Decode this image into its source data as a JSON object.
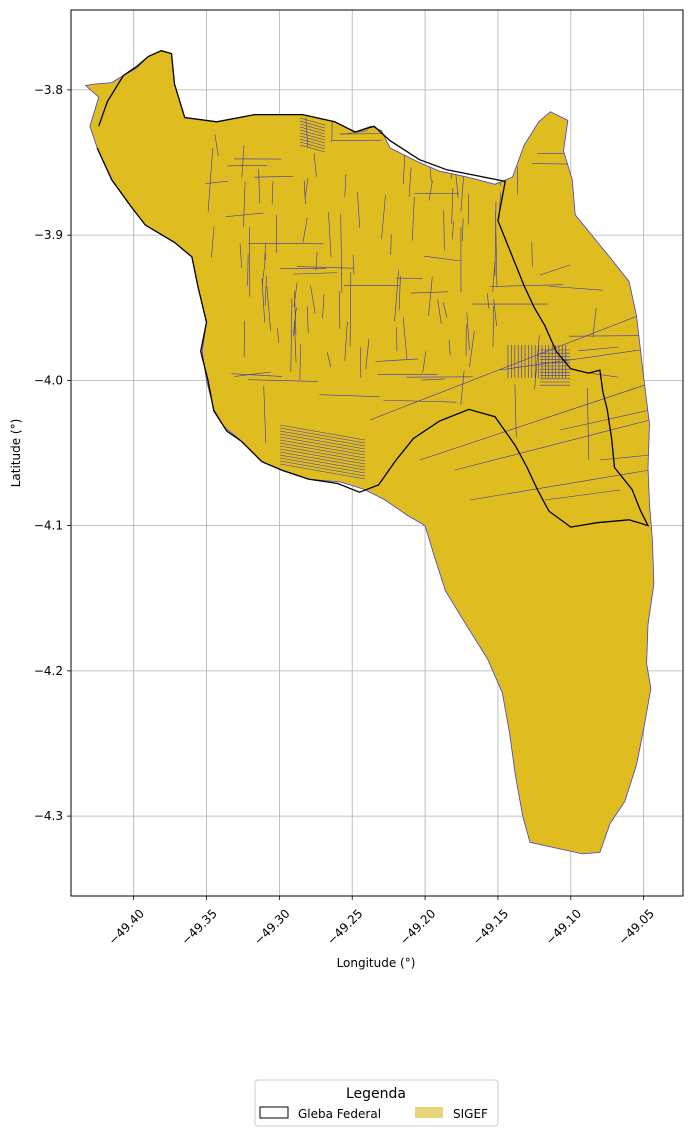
{
  "chart_data": {
    "type": "map",
    "xlabel": "Longitude (°)",
    "ylabel": "Latitude (°)",
    "xlim": [
      -49.443,
      -49.023
    ],
    "ylim": [
      -4.355,
      -3.745
    ],
    "grid": true,
    "x_ticks": [
      {
        "value": -49.4,
        "label": "−49.40"
      },
      {
        "value": -49.35,
        "label": "−49.35"
      },
      {
        "value": -49.3,
        "label": "−49.30"
      },
      {
        "value": -49.25,
        "label": "−49.25"
      },
      {
        "value": -49.2,
        "label": "−49.20"
      },
      {
        "value": -49.15,
        "label": "−49.15"
      },
      {
        "value": -49.1,
        "label": "−49.10"
      },
      {
        "value": -49.05,
        "label": "−49.05"
      }
    ],
    "y_ticks": [
      {
        "value": -3.8,
        "label": "−3.8"
      },
      {
        "value": -3.9,
        "label": "−3.9"
      },
      {
        "value": -4.0,
        "label": "−4.0"
      },
      {
        "value": -4.1,
        "label": "−4.1"
      },
      {
        "value": -4.2,
        "label": "−4.2"
      },
      {
        "value": -4.3,
        "label": "−4.3"
      }
    ],
    "legend": {
      "title": "Legenda",
      "placement": "bottom-center",
      "items": [
        {
          "label": "Gleba Federal",
          "style": "outline",
          "color": "#000000"
        },
        {
          "label": "SIGEF",
          "style": "fill",
          "color": "#e8d47a"
        }
      ]
    },
    "layers": {
      "sigef": {
        "name": "SIGEF",
        "fill": "#dfbc1f",
        "edge": "#4a3fc0",
        "outline": [
          [
            -49.427,
            -3.796
          ],
          [
            -49.415,
            -3.795
          ],
          [
            -49.407,
            -3.79
          ],
          [
            -49.398,
            -3.785
          ],
          [
            -49.39,
            -3.777
          ],
          [
            -49.381,
            -3.773
          ],
          [
            -49.374,
            -3.775
          ],
          [
            -49.372,
            -3.796
          ],
          [
            -49.365,
            -3.819
          ],
          [
            -49.343,
            -3.822
          ],
          [
            -49.317,
            -3.817
          ],
          [
            -49.284,
            -3.817
          ],
          [
            -49.262,
            -3.822
          ],
          [
            -49.248,
            -3.829
          ],
          [
            -49.237,
            -3.825
          ],
          [
            -49.23,
            -3.828
          ],
          [
            -49.224,
            -3.84
          ],
          [
            -49.204,
            -3.85
          ],
          [
            -49.19,
            -3.856
          ],
          [
            -49.171,
            -3.86
          ],
          [
            -49.152,
            -3.865
          ],
          [
            -49.14,
            -3.86
          ],
          [
            -49.132,
            -3.838
          ],
          [
            -49.122,
            -3.822
          ],
          [
            -49.114,
            -3.815
          ],
          [
            -49.102,
            -3.821
          ],
          [
            -49.105,
            -3.842
          ],
          [
            -49.099,
            -3.862
          ],
          [
            -49.097,
            -3.886
          ],
          [
            -49.084,
            -3.902
          ],
          [
            -49.071,
            -3.918
          ],
          [
            -49.06,
            -3.932
          ],
          [
            -49.055,
            -3.955
          ],
          [
            -49.05,
            -3.998
          ],
          [
            -49.046,
            -4.03
          ],
          [
            -49.047,
            -4.06
          ],
          [
            -49.046,
            -4.085
          ],
          [
            -49.044,
            -4.11
          ],
          [
            -49.043,
            -4.14
          ],
          [
            -49.047,
            -4.168
          ],
          [
            -49.048,
            -4.195
          ],
          [
            -49.045,
            -4.212
          ],
          [
            -49.05,
            -4.24
          ],
          [
            -49.055,
            -4.265
          ],
          [
            -49.063,
            -4.29
          ],
          [
            -49.073,
            -4.305
          ],
          [
            -49.08,
            -4.325
          ],
          [
            -49.092,
            -4.326
          ],
          [
            -49.11,
            -4.322
          ],
          [
            -49.128,
            -4.318
          ],
          [
            -49.133,
            -4.3
          ],
          [
            -49.138,
            -4.272
          ],
          [
            -49.142,
            -4.243
          ],
          [
            -49.147,
            -4.215
          ],
          [
            -49.157,
            -4.192
          ],
          [
            -49.172,
            -4.168
          ],
          [
            -49.186,
            -4.145
          ],
          [
            -49.194,
            -4.12
          ],
          [
            -49.2,
            -4.1
          ],
          [
            -49.212,
            -4.093
          ],
          [
            -49.228,
            -4.082
          ],
          [
            -49.242,
            -4.075
          ],
          [
            -49.258,
            -4.07
          ],
          [
            -49.28,
            -4.068
          ],
          [
            -49.3,
            -4.061
          ],
          [
            -49.312,
            -4.056
          ],
          [
            -49.328,
            -4.04
          ],
          [
            -49.338,
            -4.032
          ],
          [
            -49.345,
            -4.02
          ],
          [
            -49.35,
            -4.0
          ],
          [
            -49.353,
            -3.98
          ],
          [
            -49.35,
            -3.96
          ],
          [
            -49.356,
            -3.935
          ],
          [
            -49.36,
            -3.915
          ],
          [
            -49.372,
            -3.905
          ],
          [
            -49.392,
            -3.893
          ],
          [
            -49.402,
            -3.88
          ],
          [
            -49.415,
            -3.862
          ],
          [
            -49.425,
            -3.84
          ],
          [
            -49.43,
            -3.825
          ],
          [
            -49.427,
            -3.815
          ],
          [
            -49.424,
            -3.805
          ],
          [
            -49.433,
            -3.797
          ]
        ]
      },
      "gleba_federal": {
        "name": "Gleba Federal",
        "edge": "#000000",
        "outline": [
          [
            -49.424,
            -3.825
          ],
          [
            -49.418,
            -3.808
          ],
          [
            -49.407,
            -3.79
          ],
          [
            -49.398,
            -3.784
          ],
          [
            -49.39,
            -3.777
          ],
          [
            -49.381,
            -3.773
          ],
          [
            -49.374,
            -3.775
          ],
          [
            -49.372,
            -3.796
          ],
          [
            -49.365,
            -3.819
          ],
          [
            -49.343,
            -3.822
          ],
          [
            -49.317,
            -3.817
          ],
          [
            -49.284,
            -3.817
          ],
          [
            -49.262,
            -3.822
          ],
          [
            -49.248,
            -3.829
          ],
          [
            -49.235,
            -3.825
          ],
          [
            -49.224,
            -3.835
          ],
          [
            -49.204,
            -3.848
          ],
          [
            -49.185,
            -3.855
          ],
          [
            -49.16,
            -3.86
          ],
          [
            -49.145,
            -3.863
          ],
          [
            -49.15,
            -3.89
          ],
          [
            -49.142,
            -3.91
          ],
          [
            -49.132,
            -3.935
          ],
          [
            -49.125,
            -3.95
          ],
          [
            -49.118,
            -3.962
          ],
          [
            -49.11,
            -3.98
          ],
          [
            -49.1,
            -3.992
          ],
          [
            -49.088,
            -3.995
          ],
          [
            -49.08,
            -3.993
          ],
          [
            -49.078,
            -4.008
          ],
          [
            -49.075,
            -4.02
          ],
          [
            -49.072,
            -4.04
          ],
          [
            -49.07,
            -4.06
          ],
          [
            -49.058,
            -4.075
          ],
          [
            -49.052,
            -4.09
          ],
          [
            -49.047,
            -4.1
          ],
          [
            -49.06,
            -4.096
          ],
          [
            -49.082,
            -4.098
          ],
          [
            -49.1,
            -4.101
          ],
          [
            -49.115,
            -4.09
          ],
          [
            -49.123,
            -4.075
          ],
          [
            -49.13,
            -4.06
          ],
          [
            -49.138,
            -4.045
          ],
          [
            -49.152,
            -4.025
          ],
          [
            -49.17,
            -4.02
          ],
          [
            -49.19,
            -4.028
          ],
          [
            -49.208,
            -4.04
          ],
          [
            -49.22,
            -4.055
          ],
          [
            -49.232,
            -4.072
          ],
          [
            -49.245,
            -4.077
          ],
          [
            -49.26,
            -4.071
          ],
          [
            -49.28,
            -4.068
          ],
          [
            -49.298,
            -4.062
          ],
          [
            -49.312,
            -4.056
          ],
          [
            -49.326,
            -4.042
          ],
          [
            -49.336,
            -4.035
          ],
          [
            -49.345,
            -4.021
          ],
          [
            -49.349,
            -4.0
          ],
          [
            -49.354,
            -3.98
          ],
          [
            -49.35,
            -3.96
          ],
          [
            -49.356,
            -3.935
          ],
          [
            -49.36,
            -3.915
          ],
          [
            -49.372,
            -3.905
          ],
          [
            -49.392,
            -3.893
          ],
          [
            -49.402,
            -3.88
          ],
          [
            -49.415,
            -3.862
          ],
          [
            -49.425,
            -3.84
          ]
        ]
      }
    }
  }
}
